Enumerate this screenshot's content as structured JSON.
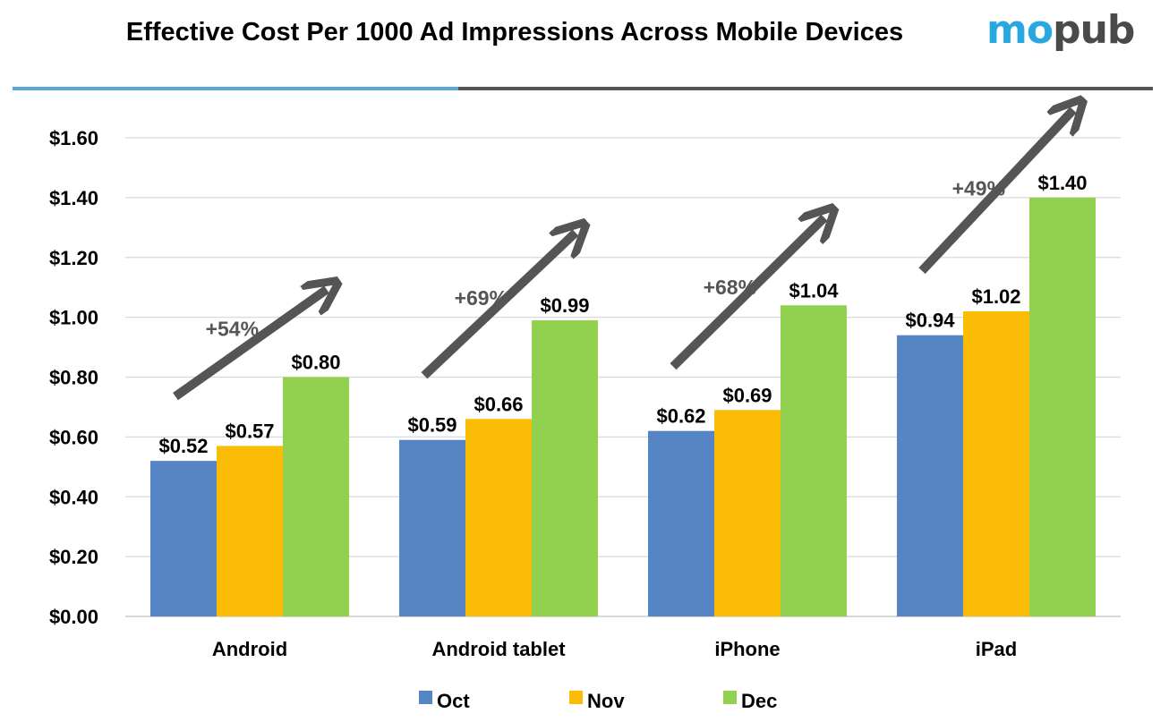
{
  "header": {
    "title": "Effective Cost Per 1000 Ad Impressions Across Mobile Devices",
    "logo_part1": "mo",
    "logo_part2": "pub"
  },
  "chart_data": {
    "type": "bar",
    "title": "Effective Cost Per 1000 Ad Impressions Across Mobile Devices",
    "categories": [
      "Android",
      "Android tablet",
      "iPhone",
      "iPad"
    ],
    "series": [
      {
        "name": "Oct",
        "color": "#5585c5",
        "values": [
          0.52,
          0.59,
          0.62,
          0.94
        ],
        "labels": [
          "$0.52",
          "$0.59",
          "$0.62",
          "$0.94"
        ]
      },
      {
        "name": "Nov",
        "color": "#fbbc05",
        "values": [
          0.57,
          0.66,
          0.69,
          1.02
        ],
        "labels": [
          "$0.57",
          "$0.66",
          "$0.69",
          "$1.02"
        ]
      },
      {
        "name": "Dec",
        "color": "#92d050",
        "values": [
          0.8,
          0.99,
          1.04,
          1.4
        ],
        "labels": [
          "$0.80",
          "$0.99",
          "$1.04",
          "$1.40"
        ]
      }
    ],
    "ylim": [
      0,
      1.6
    ],
    "y_ticks": [
      0,
      0.2,
      0.4,
      0.6,
      0.8,
      1.0,
      1.2,
      1.4,
      1.6
    ],
    "y_tick_labels": [
      "$0.00",
      "$0.20",
      "$0.40",
      "$0.60",
      "$0.80",
      "$1.00",
      "$1.20",
      "$1.40",
      "$1.60"
    ],
    "grid": true,
    "legend": "bottom",
    "annotations": [
      "+54%",
      "+69%",
      "+68%",
      "+49%"
    ],
    "arrow_color": "#555555"
  }
}
